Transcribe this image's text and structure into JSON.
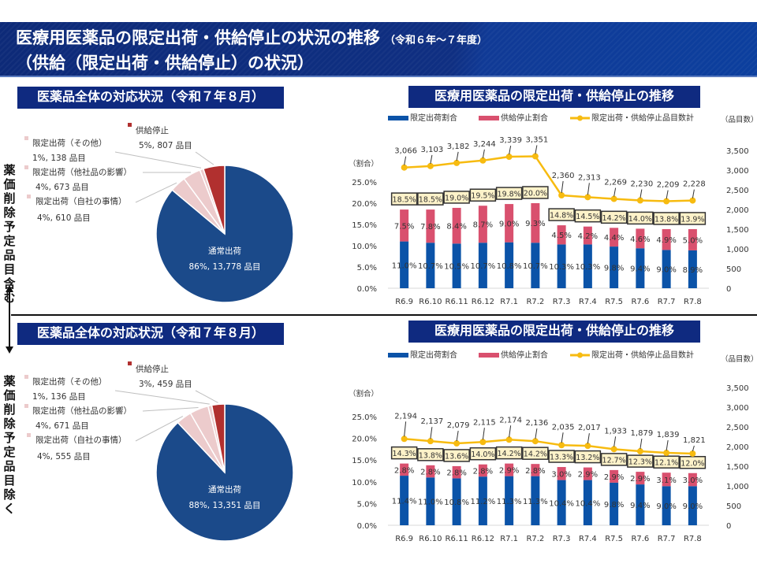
{
  "header": {
    "title_line1": "医療用医薬品の限定出荷・供給停止の状況の推移",
    "title_sub": "（令和６年～７年度）",
    "title_line2": "（供給（限定出荷・供給停止）の状況）"
  },
  "side_labels": {
    "top": "薬価削除予定品目含む",
    "bottom": "薬価削除予定品目除く"
  },
  "sections": [
    {
      "pie_title": "医薬品全体の対応状況（令和７年８月）",
      "trend_title": "医療用医薬品の限定出荷・供給停止の推移"
    },
    {
      "pie_title": "医薬品全体の対応状況（令和７年８月）",
      "trend_title": "医療用医薬品の限定出荷・供給停止の推移"
    }
  ],
  "colors": {
    "normal": "#1b4a8a",
    "limited": "#eccbcc",
    "stopped": "#b1302f",
    "bar_limited": "#0b53a8",
    "bar_stopped": "#d9506e",
    "line": "#f7bb10",
    "total_box_bg": "#fdf2c9",
    "header": "#0f2a80"
  },
  "chart_data": [
    {
      "type": "pie",
      "title": "医薬品全体の対応状況（令和７年８月）",
      "slices": [
        {
          "name": "通常出荷",
          "pct": 86,
          "count": "13,778",
          "label": "86%, 13,778 品目",
          "color": "#1b4a8a"
        },
        {
          "name": "限定出荷（自社の事情）",
          "pct": 4,
          "count": "610",
          "label": "4%, 610 品目",
          "color": "#eccbcc"
        },
        {
          "name": "限定出荷（他社品の影響）",
          "pct": 4,
          "count": "673",
          "label": "4%, 673 品目",
          "color": "#eccbcc"
        },
        {
          "name": "限定出荷（その他）",
          "pct": 1,
          "count": "138",
          "label": "1%, 138 品目",
          "color": "#eccbcc"
        },
        {
          "name": "供給停止",
          "pct": 5,
          "count": "807",
          "label": "5%, 807 品目",
          "color": "#b1302f"
        }
      ],
      "counts": [
        13778,
        610,
        673,
        138,
        807
      ]
    },
    {
      "type": "bar",
      "subtype": "stacked-bar-with-line",
      "title": "医療用医薬品の限定出荷・供給停止の推移",
      "categories": [
        "R6.9",
        "R6.10",
        "R6.11",
        "R6.12",
        "R7.1",
        "R7.2",
        "R7.3",
        "R7.4",
        "R7.5",
        "R7.6",
        "R7.7",
        "R7.8"
      ],
      "series": [
        {
          "name": "限定出荷割合",
          "axis": "left",
          "values": [
            11.0,
            10.7,
            10.5,
            10.7,
            10.8,
            10.7,
            10.3,
            10.3,
            9.8,
            9.4,
            9.0,
            8.9
          ]
        },
        {
          "name": "供給停止割合",
          "axis": "left",
          "values": [
            7.5,
            7.8,
            8.4,
            8.7,
            9.0,
            9.3,
            4.5,
            4.2,
            4.4,
            4.6,
            4.9,
            5.0
          ]
        },
        {
          "name": "限定出荷・供給停止品目数計",
          "axis": "right",
          "type": "line",
          "values": [
            3066,
            3103,
            3182,
            3244,
            3339,
            3351,
            2360,
            2313,
            2269,
            2230,
            2209,
            2228
          ]
        }
      ],
      "totals": [
        18.5,
        18.5,
        19.0,
        19.5,
        19.8,
        20.0,
        14.8,
        14.5,
        14.2,
        14.0,
        13.8,
        13.9
      ],
      "legend": [
        "限定出荷割合",
        "供給停止割合",
        "限定出荷・供給停止品目数計"
      ],
      "legend_position": "top",
      "ylabel_left": "（割合）",
      "ylabel_right": "（品目数）",
      "ylim_left": [
        0,
        25
      ],
      "yticks_left": [
        "0.0%",
        "5.0%",
        "10.0%",
        "15.0%",
        "20.0%",
        "25.0%"
      ],
      "ylim_right": [
        0,
        3500
      ],
      "yticks_right": [
        "0",
        "500",
        "1,000",
        "1,500",
        "2,000",
        "2,500",
        "3,000",
        "3,500"
      ],
      "grid": false
    },
    {
      "type": "pie",
      "title": "医薬品全体の対応状況（令和７年８月）",
      "slices": [
        {
          "name": "通常出荷",
          "pct": 88,
          "count": "13,351",
          "label": "88%, 13,351 品目",
          "color": "#1b4a8a"
        },
        {
          "name": "限定出荷（自社の事情）",
          "pct": 4,
          "count": "555",
          "label": "4%, 555 品目",
          "color": "#eccbcc"
        },
        {
          "name": "限定出荷（他社品の影響）",
          "pct": 4,
          "count": "671",
          "label": "4%, 671 品目",
          "color": "#eccbcc"
        },
        {
          "name": "限定出荷（その他）",
          "pct": 1,
          "count": "136",
          "label": "1%, 136 品目",
          "color": "#eccbcc"
        },
        {
          "name": "供給停止",
          "pct": 3,
          "count": "459",
          "label": "3%, 459 品目",
          "color": "#b1302f"
        }
      ],
      "counts": [
        13351,
        555,
        671,
        136,
        459
      ]
    },
    {
      "type": "bar",
      "subtype": "stacked-bar-with-line",
      "title": "医療用医薬品の限定出荷・供給停止の推移",
      "categories": [
        "R6.9",
        "R6.10",
        "R6.11",
        "R6.12",
        "R7.1",
        "R7.2",
        "R7.3",
        "R7.4",
        "R7.5",
        "R7.6",
        "R7.7",
        "R7.8"
      ],
      "series": [
        {
          "name": "限定出荷割合",
          "axis": "left",
          "values": [
            11.4,
            11.0,
            10.8,
            11.2,
            11.3,
            11.3,
            10.4,
            10.4,
            9.8,
            9.4,
            9.0,
            9.0
          ]
        },
        {
          "name": "供給停止割合",
          "axis": "left",
          "values": [
            2.8,
            2.8,
            2.8,
            2.8,
            2.9,
            2.8,
            3.0,
            2.9,
            2.9,
            2.9,
            3.1,
            3.0
          ]
        },
        {
          "name": "限定出荷・供給停止品目数計",
          "axis": "right",
          "type": "line",
          "values": [
            2194,
            2137,
            2079,
            2115,
            2174,
            2136,
            2035,
            2017,
            1933,
            1879,
            1839,
            1821
          ]
        }
      ],
      "totals": [
        14.3,
        13.8,
        13.6,
        14.0,
        14.2,
        14.2,
        13.3,
        13.2,
        12.7,
        12.3,
        12.1,
        12.0
      ],
      "legend": [
        "限定出荷割合",
        "供給停止割合",
        "限定出荷・供給停止品目数計"
      ],
      "legend_position": "top",
      "ylabel_left": "（割合）",
      "ylabel_right": "（品目数）",
      "ylim_left": [
        0,
        25
      ],
      "yticks_left": [
        "0.0%",
        "5.0%",
        "10.0%",
        "15.0%",
        "20.0%",
        "25.0%"
      ],
      "ylim_right": [
        0,
        3500
      ],
      "yticks_right": [
        "0",
        "500",
        "1,000",
        "1,500",
        "2,000",
        "2,500",
        "3,000",
        "3,500"
      ],
      "grid": false
    }
  ]
}
